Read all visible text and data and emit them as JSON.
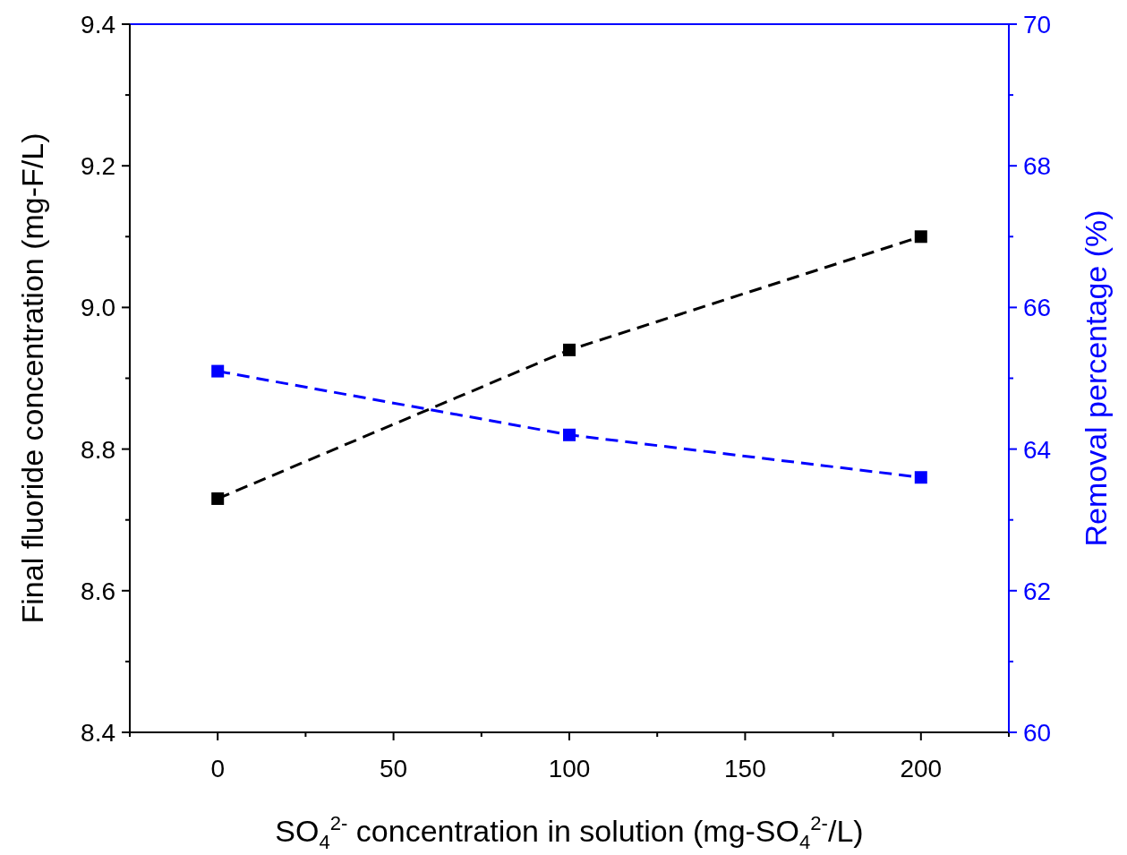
{
  "chart_data": {
    "type": "line",
    "xlabel": "SO$_{4}$$^{2-}$ concentration in solution (mg-SO$_{4}$$^{2-}$/L)",
    "ylabel": "Final fluoride concentration (mg-F/L)",
    "y2label": "Removal percentage (%)",
    "x": [
      0,
      100,
      200
    ],
    "series": [
      {
        "color": "#000000",
        "values": [
          8.73,
          8.94,
          9.1
        ]
      },
      {
        "color": "#0000ff",
        "values": [
          65.1,
          64.2,
          63.6
        ],
        "axis": "y2"
      }
    ],
    "xlim": [
      -25,
      225
    ],
    "xticks": [
      {
        "value": -25,
        "label": null
      },
      0,
      {
        "value": 25,
        "label": null
      },
      50,
      {
        "value": 75,
        "label": null
      },
      100,
      {
        "value": 125,
        "label": null
      },
      150,
      {
        "value": 175,
        "label": null
      },
      200,
      {
        "value": 225,
        "label": null
      }
    ],
    "ylim": [
      8.4,
      9.4
    ],
    "yticks": [
      {
        "value": 8.4,
        "label": "8.4"
      },
      {
        "value": 8.5,
        "label": null
      },
      {
        "value": 8.6,
        "label": "8.6"
      },
      {
        "value": 8.7,
        "label": null
      },
      {
        "value": 8.8,
        "label": "8.8"
      },
      {
        "value": 8.9,
        "label": null
      },
      {
        "value": 9.0,
        "label": "9.0"
      },
      {
        "value": 9.1,
        "label": null
      },
      {
        "value": 9.2,
        "label": "9.2"
      },
      {
        "value": 9.3,
        "label": null
      },
      {
        "value": 9.4,
        "label": "9.4"
      }
    ],
    "y2lim": [
      60,
      70
    ],
    "y2ticks": [
      60,
      {
        "value": 61,
        "label": null
      },
      62,
      {
        "value": 63,
        "label": null
      },
      64,
      {
        "value": 65,
        "label": null
      },
      66,
      {
        "value": 67,
        "label": null
      },
      68,
      {
        "value": 69,
        "label": null
      },
      70
    ],
    "marker": "square",
    "line_style": "dashed",
    "grid": false
  }
}
